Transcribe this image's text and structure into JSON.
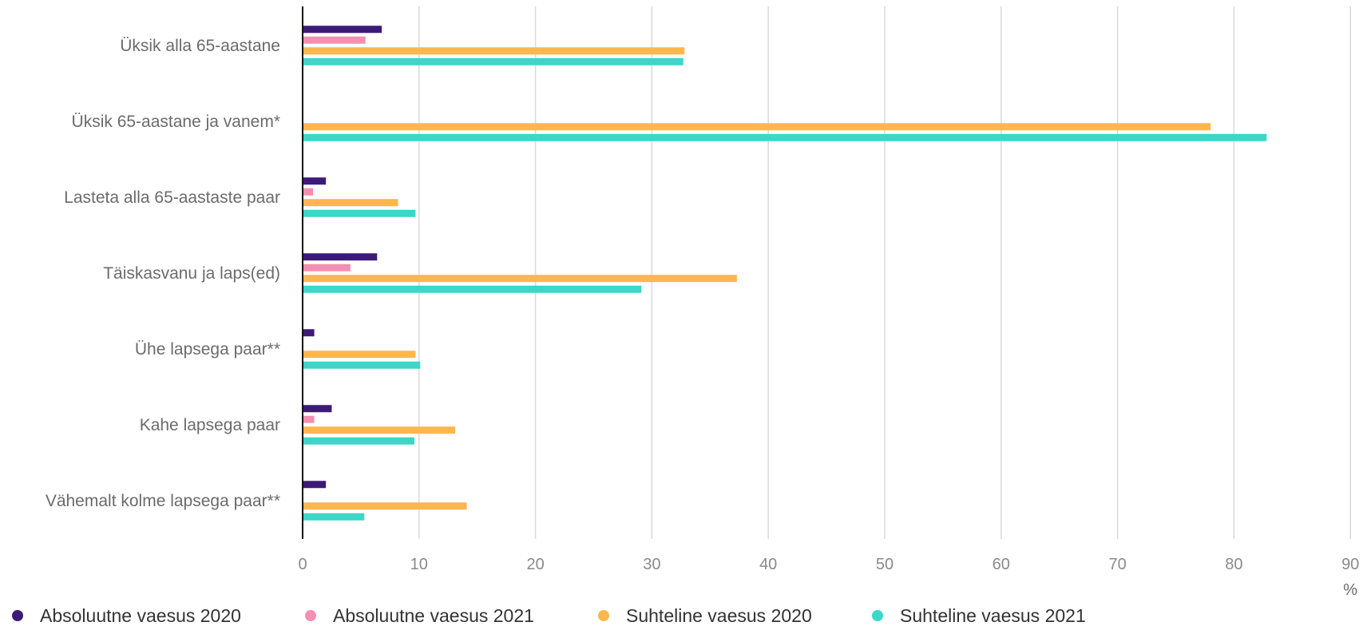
{
  "chart_data": {
    "type": "bar",
    "orientation": "horizontal",
    "categories": [
      "Üksik alla 65-aastane",
      "Üksik 65-aastane ja vanem*",
      "Lasteta alla 65-aastaste paar",
      "Täiskasvanu ja laps(ed)",
      "Ühe lapsega paar**",
      "Kahe lapsega paar",
      "Vähemalt kolme lapsega paar**"
    ],
    "series": [
      {
        "name": "Absoluutne vaesus 2020",
        "color": "#3d1a78",
        "values": [
          6.8,
          null,
          2.0,
          6.4,
          1.0,
          2.5,
          2.0
        ]
      },
      {
        "name": "Absoluutne vaesus 2021",
        "color": "#f48fb1",
        "values": [
          5.4,
          null,
          0.9,
          4.1,
          null,
          1.0,
          null
        ]
      },
      {
        "name": "Suhteline vaesus 2020",
        "color": "#ffb74d",
        "values": [
          32.8,
          78.0,
          8.2,
          37.3,
          9.7,
          13.1,
          14.1
        ]
      },
      {
        "name": "Suhteline vaesus 2021",
        "color": "#3dd6c9",
        "values": [
          32.7,
          82.8,
          9.7,
          29.1,
          10.1,
          9.6,
          5.3
        ]
      }
    ],
    "xticks": [
      0,
      10,
      20,
      30,
      40,
      50,
      60,
      70,
      80,
      90
    ],
    "xlim": [
      0,
      90
    ],
    "unit": "%",
    "grid": true,
    "legend_position": "bottom"
  }
}
